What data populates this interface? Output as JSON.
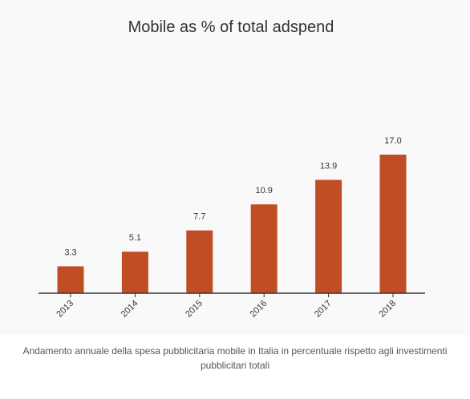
{
  "chart_data": {
    "type": "bar",
    "title": "Mobile as % of total adspend",
    "categories": [
      "2013",
      "2014",
      "2015",
      "2016",
      "2017",
      "2018"
    ],
    "values": [
      3.3,
      5.1,
      7.7,
      10.9,
      13.9,
      17.0
    ],
    "value_labels": [
      "3.3",
      "5.1",
      "7.7",
      "10.9",
      "13.9",
      "17.0"
    ],
    "xlabel": "",
    "ylabel": "",
    "ylim": [
      0,
      17.0
    ],
    "grid": false,
    "legend": "none",
    "colors": {
      "bar": "#c04e25",
      "axis": "#333333",
      "text": "#333333",
      "background": "#f9f9f9"
    }
  },
  "caption": "Andamento annuale della spesa pubblicitaria mobile in Italia in percentuale rispetto agli investimenti pubblicitari totali"
}
